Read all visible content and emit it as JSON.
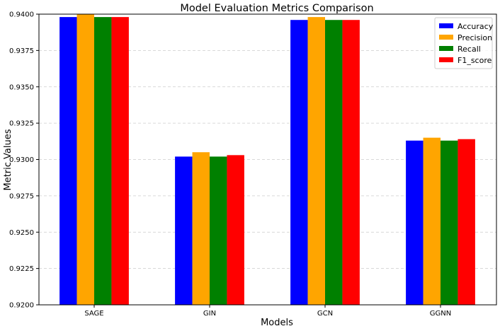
{
  "chart_data": {
    "type": "bar",
    "title": "Model Evaluation Metrics Comparison",
    "xlabel": "Models",
    "ylabel": "Metric Values",
    "categories": [
      "SAGE",
      "GIN",
      "GCN",
      "GGNN"
    ],
    "ylim": [
      0.92,
      0.94
    ],
    "yticks": [
      0.92,
      0.9225,
      0.925,
      0.9275,
      0.93,
      0.9325,
      0.935,
      0.9375,
      0.94
    ],
    "ytick_labels": [
      "0.9200",
      "0.9225",
      "0.9250",
      "0.9275",
      "0.9300",
      "0.9325",
      "0.9350",
      "0.9375",
      "0.9400"
    ],
    "grid": true,
    "legend_position": "top-right",
    "series": [
      {
        "name": "Accuracy",
        "color": "#0000ff",
        "values": [
          0.9398,
          0.9302,
          0.9396,
          0.9313
        ]
      },
      {
        "name": "Precision",
        "color": "#ffa500",
        "values": [
          0.94,
          0.9305,
          0.9398,
          0.9315
        ]
      },
      {
        "name": "Recall",
        "color": "#008000",
        "values": [
          0.9398,
          0.9302,
          0.9396,
          0.9313
        ]
      },
      {
        "name": "F1_score",
        "color": "#ff0000",
        "values": [
          0.9398,
          0.9303,
          0.9396,
          0.9314
        ]
      }
    ]
  }
}
